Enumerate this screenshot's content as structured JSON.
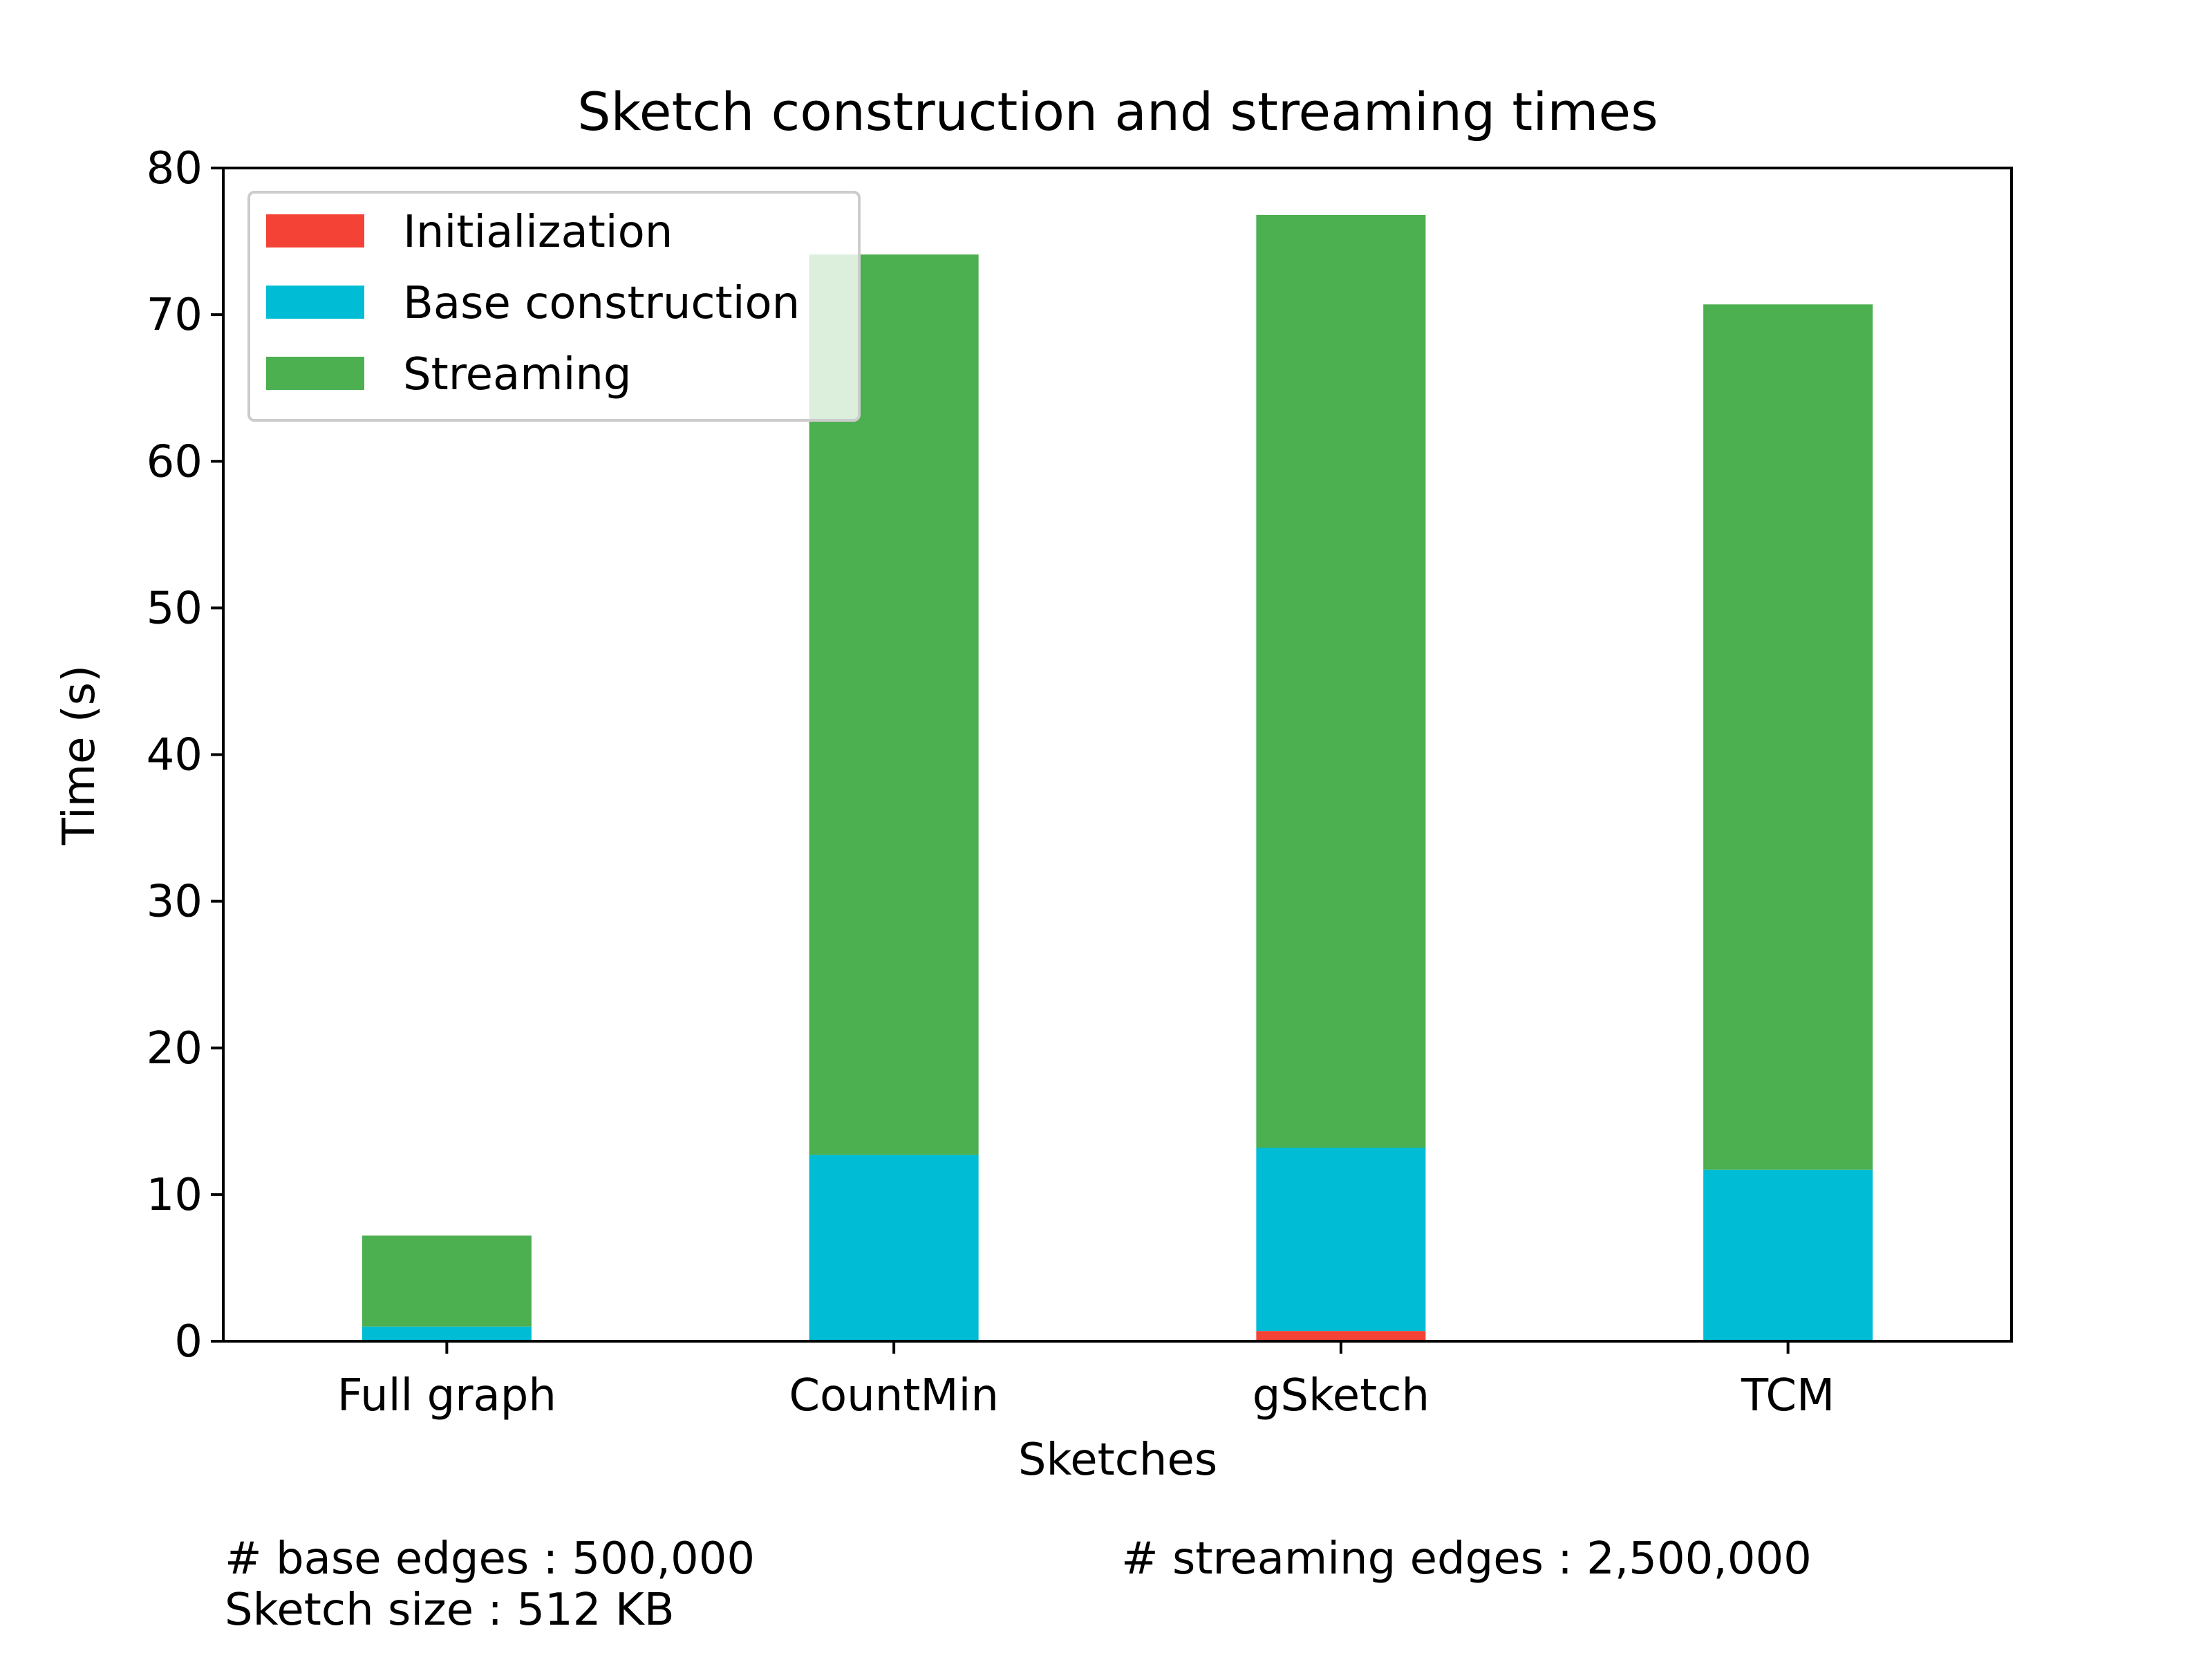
{
  "chart_data": {
    "type": "bar",
    "stacked": true,
    "title": "Sketch construction and streaming times",
    "xlabel": "Sketches",
    "ylabel": "Time (s)",
    "categories": [
      "Full graph",
      "CountMin",
      "gSketch",
      "TCM"
    ],
    "ylim": [
      0,
      80
    ],
    "yticks": [
      0,
      10,
      20,
      30,
      40,
      50,
      60,
      70,
      80
    ],
    "grid": false,
    "legend_position": "upper-left",
    "series": [
      {
        "name": "Initialization",
        "color": "#f44336",
        "values": [
          0.0,
          0.0,
          0.7,
          0.0
        ]
      },
      {
        "name": "Base construction",
        "color": "#00bcd4",
        "values": [
          1.0,
          12.7,
          12.5,
          11.7
        ]
      },
      {
        "name": "Streaming",
        "color": "#4caf50",
        "values": [
          6.2,
          61.4,
          63.6,
          59.0
        ]
      }
    ],
    "annotations": {
      "base_edges": "# base edges : 500,000",
      "streaming_edges": "# streaming edges : 2,500,000",
      "sketch_size": "Sketch size : 512 KB"
    }
  }
}
